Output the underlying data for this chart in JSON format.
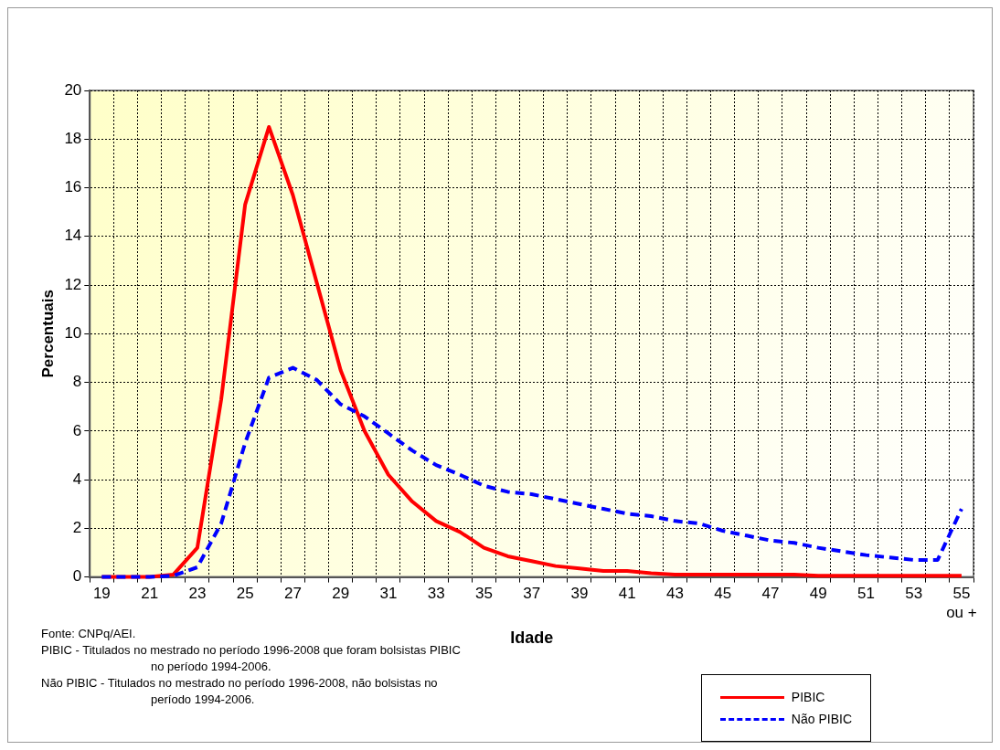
{
  "chart_data": {
    "type": "line",
    "xlabel": "Idade",
    "ylabel": "Percentuais",
    "categories": [
      "19",
      null,
      "21",
      null,
      "23",
      null,
      "25",
      null,
      "27",
      null,
      "29",
      null,
      "31",
      null,
      "33",
      null,
      "35",
      null,
      "37",
      null,
      "39",
      null,
      "41",
      null,
      "43",
      null,
      "45",
      null,
      "47",
      null,
      "49",
      null,
      "51",
      null,
      "53",
      null,
      "55 ou +"
    ],
    "series": [
      {
        "name": "PIBIC",
        "color": "#ff0000",
        "line_style": "solid",
        "values": [
          0,
          0,
          0,
          0.1,
          1.2,
          7.3,
          15.3,
          18.5,
          15.7,
          12.1,
          8.5,
          6.0,
          4.2,
          3.1,
          2.3,
          1.85,
          1.2,
          0.85,
          0.65,
          0.45,
          0.35,
          0.25,
          0.25,
          0.15,
          0.1,
          0.1,
          0.1,
          0.1,
          0.1,
          0.1,
          0.05,
          0.05,
          0.05,
          0.05,
          0.05,
          0.05,
          0.05
        ]
      },
      {
        "name": "Não PIBIC",
        "color": "#0000ff",
        "line_style": "dashed",
        "values": [
          0,
          0,
          0,
          0.05,
          0.4,
          2.2,
          5.5,
          8.2,
          8.6,
          8.1,
          7.1,
          6.6,
          5.9,
          5.2,
          4.6,
          4.2,
          3.75,
          3.5,
          3.4,
          3.2,
          3.0,
          2.8,
          2.6,
          2.5,
          2.3,
          2.2,
          1.9,
          1.7,
          1.5,
          1.4,
          1.2,
          1.05,
          0.9,
          0.8,
          0.7,
          0.7,
          2.8
        ]
      }
    ],
    "ylim": [
      0,
      20
    ],
    "yticks": [
      0,
      2,
      4,
      6,
      8,
      10,
      12,
      14,
      16,
      18,
      20
    ],
    "grid": true,
    "legend": "bottom right",
    "marker": "none",
    "annotations": [
      "Fonte: CNPq/AEI.",
      "PIBIC - Titulados no mestrado no período 1996-2008 que foram bolsistas PIBIC no período 1994-2006.",
      "Não PIBIC - Titulados no mestrado no período 1996-2008, não bolsistas no período 1994-2006."
    ]
  }
}
